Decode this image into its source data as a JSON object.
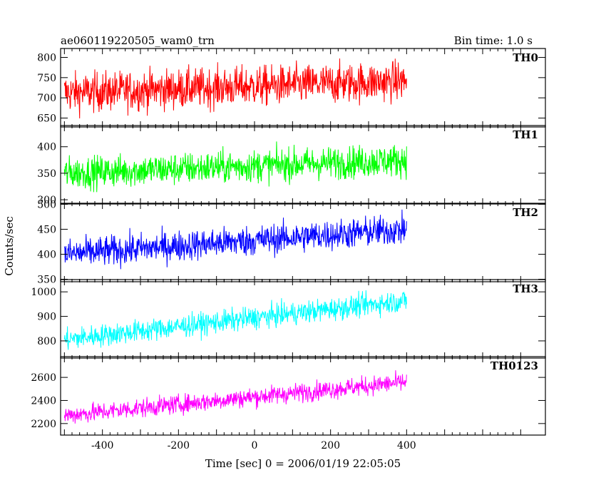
{
  "chart_data": {
    "type": "line",
    "title_left": "ae060119220505_wam0_trn",
    "title_right": "Bin time: 1.0 s",
    "xlabel": "Time [sec] 0 = 2006/01/19 22:05:05",
    "ylabel": "Counts/sec",
    "xlim": [
      -510,
      765
    ],
    "x_data_range": [
      -500,
      400
    ],
    "x_ticks": [
      -400,
      -200,
      0,
      200,
      400
    ],
    "grid": false,
    "panels": [
      {
        "name": "TH0",
        "color": "#ff0000",
        "ylim": [
          628,
          822
        ],
        "y_ticks": [
          650,
          700,
          750,
          800
        ],
        "trend_start": 712,
        "trend_end": 742,
        "noise": 45
      },
      {
        "name": "TH1",
        "color": "#00ff00",
        "ylim": [
          292,
          440
        ],
        "y_ticks": [
          300,
          350,
          400
        ],
        "trend_start": 350,
        "trend_end": 375,
        "noise": 28
      },
      {
        "name": "TH2",
        "color": "#0000ff",
        "ylim": [
          345,
          502
        ],
        "y_ticks": [
          350,
          400,
          450,
          500
        ],
        "trend_start": 400,
        "trend_end": 450,
        "noise": 28
      },
      {
        "name": "TH3",
        "color": "#00ffff",
        "ylim": [
          730,
          1050
        ],
        "y_ticks": [
          800,
          900,
          1000
        ],
        "trend_start": 805,
        "trend_end": 965,
        "noise": 42
      },
      {
        "name": "TH0123",
        "color": "#ff00ff",
        "ylim": [
          2100,
          2780
        ],
        "y_ticks": [
          2200,
          2400,
          2600
        ],
        "trend_start": 2270,
        "trend_end": 2560,
        "noise": 75
      }
    ]
  }
}
